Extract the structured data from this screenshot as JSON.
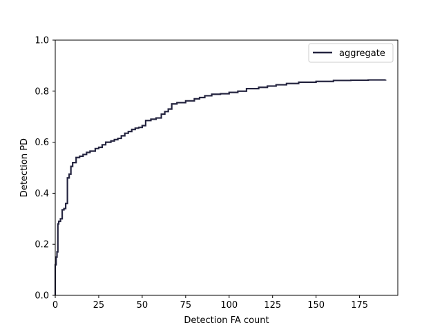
{
  "chart_data": {
    "type": "line",
    "title": "",
    "xlabel": "Detection FA count",
    "ylabel": "Detection PD",
    "xlim": [
      0,
      197
    ],
    "ylim": [
      0,
      1.0
    ],
    "xticks": [
      0,
      25,
      50,
      75,
      100,
      125,
      150,
      175
    ],
    "yticks": [
      0.0,
      0.2,
      0.4,
      0.6,
      0.8,
      1.0
    ],
    "xtick_labels": [
      "0",
      "25",
      "50",
      "75",
      "100",
      "125",
      "150",
      "175"
    ],
    "ytick_labels": [
      "0.0",
      "0.2",
      "0.4",
      "0.6",
      "0.8",
      "1.0"
    ],
    "grid": false,
    "legend": {
      "location": "upper right",
      "entries": [
        "aggregate"
      ]
    },
    "series": [
      {
        "name": "aggregate",
        "color": "#252540",
        "step": true,
        "x": [
          0,
          0.5,
          1,
          1.5,
          2,
          2.5,
          3,
          4,
          5,
          6,
          7,
          8,
          9,
          10,
          12,
          14,
          16,
          18,
          20,
          23,
          25,
          27,
          29,
          32,
          34,
          36,
          38,
          40,
          42,
          44,
          46,
          48,
          50,
          52,
          55,
          58,
          61,
          63,
          65,
          67,
          70,
          75,
          80,
          83,
          86,
          90,
          95,
          100,
          105,
          110,
          117,
          122,
          127,
          133,
          140,
          150,
          160,
          170,
          180,
          190
        ],
        "y": [
          0.12,
          0.15,
          0.17,
          0.28,
          0.29,
          0.29,
          0.3,
          0.335,
          0.34,
          0.36,
          0.46,
          0.475,
          0.505,
          0.52,
          0.54,
          0.545,
          0.552,
          0.56,
          0.565,
          0.575,
          0.58,
          0.59,
          0.6,
          0.605,
          0.61,
          0.615,
          0.625,
          0.635,
          0.642,
          0.65,
          0.655,
          0.658,
          0.665,
          0.685,
          0.69,
          0.695,
          0.71,
          0.72,
          0.73,
          0.75,
          0.755,
          0.762,
          0.77,
          0.775,
          0.782,
          0.788,
          0.79,
          0.795,
          0.8,
          0.81,
          0.815,
          0.82,
          0.825,
          0.83,
          0.835,
          0.838,
          0.842,
          0.843,
          0.844,
          0.845
        ]
      }
    ]
  }
}
